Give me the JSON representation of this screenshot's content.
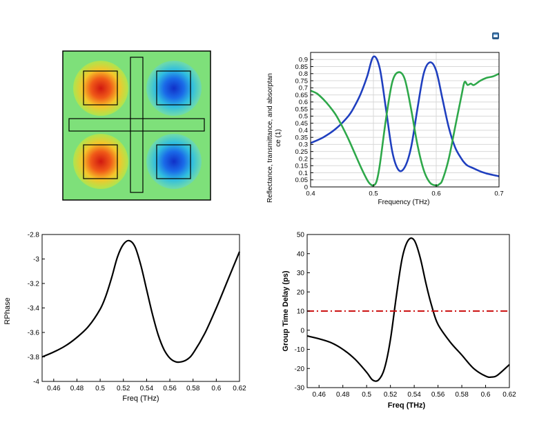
{
  "colors": {
    "blue_series": "#1f3fbf",
    "green_series": "#2ea84a",
    "black_series": "#000000",
    "red_dashdot": "#cc1111",
    "field_background": "#7ee07a",
    "hot": "#e0301a",
    "cold": "#1a5fe0"
  },
  "icons": {
    "corner": "window-restore-icon"
  },
  "chart_data": [
    {
      "type": "heatmap",
      "title": "",
      "xlabel": "",
      "ylabel": "",
      "description_note": ""
    },
    {
      "type": "line",
      "title": "",
      "xlabel": "Frequency (THz)",
      "ylabel": "Reflectance, transmittance, and absorptance (1)",
      "ylabel_lines": [
        "Reflectance, transmittance, and absorptan",
        "ce (1)"
      ],
      "xlim": [
        0.4,
        0.7
      ],
      "ylim": [
        0,
        0.95
      ],
      "xticks": [
        "0.4",
        "0.5",
        "0.6",
        "0.7"
      ],
      "yticks": [
        "0",
        "0.05",
        "0.1",
        "0.15",
        "0.2",
        "0.25",
        "0.3",
        "0.35",
        "0.4",
        "0.45",
        "0.5",
        "0.55",
        "0.6",
        "0.65",
        "0.7",
        "0.75",
        "0.8",
        "0.85",
        "0.9"
      ],
      "grid": true,
      "series": [
        {
          "color": "#1f3fbf",
          "x": [
            0.4,
            0.42,
            0.44,
            0.46,
            0.47,
            0.48,
            0.49,
            0.5,
            0.51,
            0.52,
            0.53,
            0.54,
            0.55,
            0.56,
            0.57,
            0.58,
            0.59,
            0.6,
            0.61,
            0.62,
            0.63,
            0.64,
            0.645,
            0.65,
            0.66,
            0.67,
            0.68,
            0.69,
            0.7
          ],
          "y": [
            0.31,
            0.35,
            0.41,
            0.5,
            0.57,
            0.66,
            0.78,
            0.92,
            0.84,
            0.55,
            0.25,
            0.12,
            0.14,
            0.28,
            0.55,
            0.8,
            0.88,
            0.82,
            0.62,
            0.42,
            0.28,
            0.2,
            0.17,
            0.15,
            0.13,
            0.11,
            0.095,
            0.085,
            0.075
          ]
        },
        {
          "color": "#2ea84a",
          "x": [
            0.4,
            0.41,
            0.42,
            0.43,
            0.44,
            0.45,
            0.46,
            0.47,
            0.48,
            0.49,
            0.495,
            0.5,
            0.505,
            0.51,
            0.52,
            0.53,
            0.54,
            0.55,
            0.56,
            0.57,
            0.58,
            0.59,
            0.6,
            0.605,
            0.61,
            0.62,
            0.63,
            0.64,
            0.645,
            0.65,
            0.655,
            0.66,
            0.67,
            0.68,
            0.69,
            0.7
          ],
          "y": [
            0.68,
            0.66,
            0.62,
            0.57,
            0.51,
            0.43,
            0.34,
            0.24,
            0.14,
            0.05,
            0.02,
            0.01,
            0.04,
            0.15,
            0.48,
            0.74,
            0.81,
            0.76,
            0.55,
            0.3,
            0.12,
            0.03,
            0.01,
            0.02,
            0.05,
            0.2,
            0.42,
            0.64,
            0.74,
            0.72,
            0.73,
            0.72,
            0.75,
            0.77,
            0.78,
            0.8
          ]
        }
      ]
    },
    {
      "type": "line",
      "title": "",
      "xlabel": "Freq (THz)",
      "ylabel": "RPhase",
      "xlim": [
        0.45,
        0.62
      ],
      "ylim": [
        -4,
        -2.8
      ],
      "xticks": [
        "0.46",
        "0.48",
        "0.5",
        "0.52",
        "0.54",
        "0.56",
        "0.58",
        "0.6",
        "0.62"
      ],
      "yticks": [
        "-2.8",
        "-3",
        "-3.2",
        "-3.4",
        "-3.6",
        "-3.8",
        "-4"
      ],
      "grid": false,
      "series": [
        {
          "color": "#000000",
          "x": [
            0.45,
            0.46,
            0.47,
            0.48,
            0.49,
            0.5,
            0.505,
            0.51,
            0.515,
            0.52,
            0.525,
            0.53,
            0.535,
            0.54,
            0.545,
            0.55,
            0.555,
            0.56,
            0.565,
            0.57,
            0.575,
            0.58,
            0.59,
            0.6,
            0.61,
            0.62
          ],
          "y": [
            -3.8,
            -3.76,
            -3.71,
            -3.64,
            -3.55,
            -3.41,
            -3.3,
            -3.15,
            -2.98,
            -2.88,
            -2.85,
            -2.9,
            -3.05,
            -3.25,
            -3.45,
            -3.62,
            -3.74,
            -3.81,
            -3.84,
            -3.84,
            -3.82,
            -3.77,
            -3.61,
            -3.4,
            -3.17,
            -2.94
          ]
        }
      ]
    },
    {
      "type": "line",
      "title": "",
      "xlabel": "Freq (THz)",
      "ylabel": "Group Time Delay (ps)",
      "xlim": [
        0.45,
        0.62
      ],
      "ylim": [
        -30,
        50
      ],
      "xticks": [
        "0.46",
        "0.48",
        "0.5",
        "0.52",
        "0.54",
        "0.56",
        "0.58",
        "0.6",
        "0.62"
      ],
      "yticks": [
        "50",
        "40",
        "30",
        "20",
        "10",
        "0",
        "-10",
        "-20",
        "-30"
      ],
      "grid": false,
      "series": [
        {
          "color": "#000000",
          "x": [
            0.45,
            0.46,
            0.47,
            0.48,
            0.49,
            0.5,
            0.505,
            0.51,
            0.515,
            0.52,
            0.525,
            0.53,
            0.535,
            0.54,
            0.545,
            0.55,
            0.555,
            0.56,
            0.57,
            0.58,
            0.59,
            0.6,
            0.605,
            0.61,
            0.62
          ],
          "y": [
            -3,
            -4.5,
            -6.5,
            -10,
            -15,
            -22,
            -26,
            -26,
            -20,
            -5,
            18,
            38,
            47,
            47,
            38,
            24,
            12,
            3,
            -6,
            -13,
            -20,
            -24,
            -24.5,
            -23.5,
            -18
          ]
        },
        {
          "color": "#cc1111",
          "style": "dash-dot",
          "x": [
            0.45,
            0.62
          ],
          "y": [
            10,
            10
          ]
        }
      ]
    }
  ]
}
